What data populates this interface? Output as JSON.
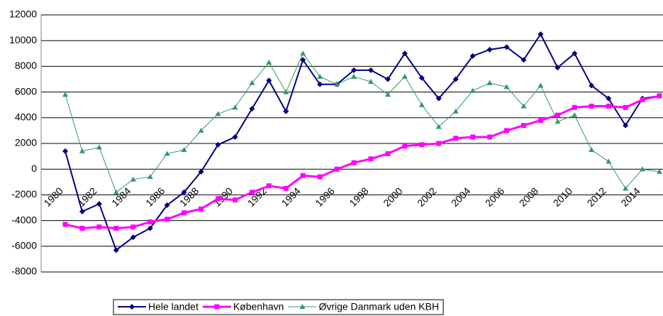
{
  "chart_data": {
    "type": "line",
    "categories": [
      "1980",
      null,
      "1982",
      null,
      "1984",
      null,
      "1986",
      null,
      "1988",
      null,
      "1990",
      null,
      "1992",
      null,
      "1994",
      null,
      "1996",
      null,
      "1998",
      null,
      "2000",
      null,
      "2002",
      null,
      "2004",
      null,
      "2006",
      null,
      "2008",
      null,
      "2010",
      null,
      "2012",
      null,
      "2014",
      null
    ],
    "series": [
      {
        "name": "Hele landet",
        "color": "#000080",
        "marker": "diamond",
        "values": [
          1400,
          -3300,
          -2700,
          -6300,
          -5300,
          -4600,
          -2800,
          -1800,
          -200,
          1900,
          2500,
          4700,
          6900,
          4500,
          8500,
          6600,
          6600,
          7700,
          7700,
          7000,
          9000,
          7100,
          5500,
          7000,
          8800,
          9300,
          9500,
          8500,
          10500,
          7900,
          9000,
          6500,
          5500,
          3400,
          5500,
          5700
        ]
      },
      {
        "name": "København",
        "color": "#ff00ff",
        "marker": "square",
        "values": [
          -4300,
          -4600,
          -4500,
          -4600,
          -4500,
          -4100,
          -3900,
          -3400,
          -3100,
          -2300,
          -2400,
          -1800,
          -1300,
          -1500,
          -500,
          -600,
          0,
          500,
          800,
          1200,
          1800,
          1900,
          2000,
          2400,
          2500,
          2500,
          3000,
          3400,
          3800,
          4200,
          4800,
          4900,
          4900,
          4800,
          5400,
          5700
        ]
      },
      {
        "name": "Øvrige Danmark uden KBH",
        "color": "#339966",
        "marker": "triangle",
        "values": [
          5800,
          1400,
          1700,
          -1800,
          -800,
          -600,
          1200,
          1500,
          3000,
          4300,
          4800,
          6700,
          8300,
          6000,
          9000,
          7200,
          6600,
          7200,
          6800,
          5800,
          7200,
          5000,
          3300,
          4500,
          6100,
          6700,
          6400,
          4900,
          6500,
          3700,
          4200,
          1500,
          600,
          -1500,
          0,
          -200
        ]
      }
    ],
    "ylim": [
      -8000,
      12000
    ],
    "yticks": [
      -8000,
      -6000,
      -4000,
      -2000,
      0,
      2000,
      4000,
      6000,
      8000,
      10000,
      12000
    ],
    "grid": true,
    "legend": "bottom"
  }
}
